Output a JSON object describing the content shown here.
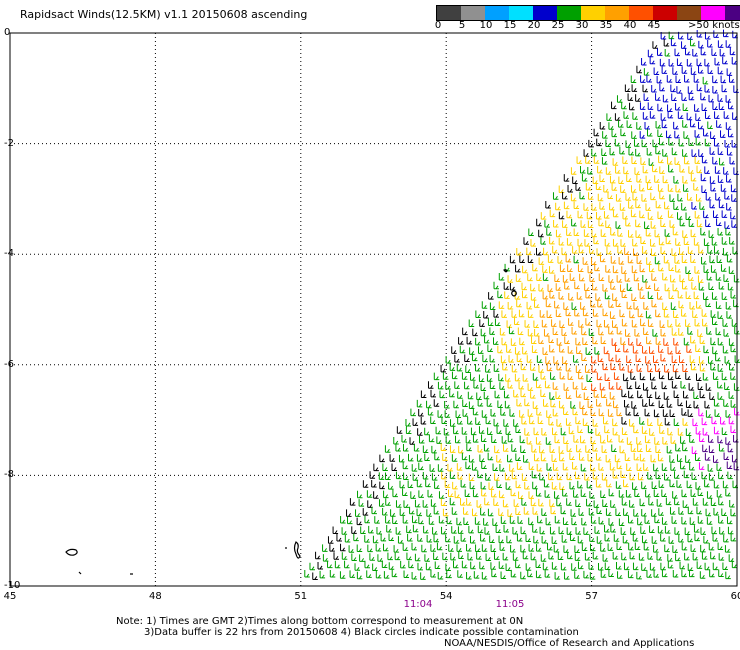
{
  "title": "Rapidsact Winds(12.5KM) v1.1 20150608 ascending",
  "colorbar": {
    "labels": [
      "0",
      "5",
      "10",
      "15",
      "20",
      "25",
      "30",
      "35",
      "40",
      "45"
    ],
    "last_label": ">50 knots",
    "colors": [
      "#404040",
      "#909090",
      "#00a0ff",
      "#00e0ff",
      "#0000cc",
      "#00a000",
      "#ffd000",
      "#ffa000",
      "#ff5000",
      "#cc0000",
      "#8b4513",
      "#ff00ff",
      "#4b0082"
    ]
  },
  "map": {
    "lat_labels": [
      "0",
      "-2",
      "-4",
      "-6",
      "-8",
      "-10"
    ],
    "lon_labels": [
      "45",
      "48",
      "51",
      "54",
      "57",
      "60"
    ],
    "time_labels": [
      "11:04",
      "11:05"
    ]
  },
  "notes": {
    "line1": "Note: 1) Times are GMT 2)Times along bottom correspond to measurement at 0N",
    "line2": "3)Data buffer is 22 hrs from 20150608 4) Black circles indicate possible contamination",
    "line3": "NOAA/NESDIS/Office of Research and Applications"
  }
}
